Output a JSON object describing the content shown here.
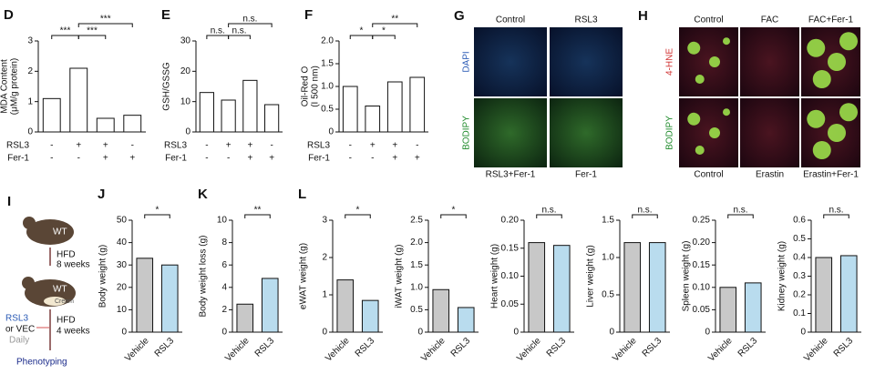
{
  "chart_data": [
    {
      "type": "bar",
      "panel": "D",
      "ylabel": [
        "MDA Content",
        "(μM/g protein)"
      ],
      "ylim": [
        0,
        3
      ],
      "yticks": [
        0,
        1,
        2,
        3
      ],
      "values": [
        1.1,
        2.1,
        0.45,
        0.55
      ],
      "color": "#ffffff",
      "conditions": [
        {
          "name": "RSL3",
          "signs": [
            "-",
            "+",
            "+",
            "-"
          ]
        },
        {
          "name": "Fer-1",
          "signs": [
            "-",
            "-",
            "+",
            "+"
          ]
        }
      ],
      "comparisons": [
        {
          "pair": [
            0,
            1
          ],
          "label": "***"
        },
        {
          "pair": [
            1,
            2
          ],
          "label": "***"
        },
        {
          "pair": [
            1,
            3
          ],
          "label": "***"
        }
      ]
    },
    {
      "type": "bar",
      "panel": "E",
      "ylabel": [
        "GSH/GSSG"
      ],
      "ylim": [
        0,
        30
      ],
      "yticks": [
        0,
        10,
        20,
        30
      ],
      "values": [
        13,
        10.5,
        17,
        9
      ],
      "color": "#ffffff",
      "conditions": [
        {
          "name": "RSL3",
          "signs": [
            "-",
            "+",
            "+",
            "-"
          ]
        },
        {
          "name": "Fer-1",
          "signs": [
            "-",
            "-",
            "+",
            "+"
          ]
        }
      ],
      "comparisons": [
        {
          "pair": [
            0,
            1
          ],
          "label": "n.s."
        },
        {
          "pair": [
            1,
            2
          ],
          "label": "n.s."
        },
        {
          "pair": [
            1,
            3
          ],
          "label": "n.s."
        }
      ]
    },
    {
      "type": "bar",
      "panel": "F",
      "ylabel": [
        "Oil-Red O",
        "(I 500 nm)"
      ],
      "ylim": [
        0,
        2
      ],
      "yticks": [
        0,
        0.5,
        {
          "value": 1,
          "label": "1.0"
        },
        1.5,
        {
          "value": 2,
          "label": "2.0"
        }
      ],
      "values": [
        1.0,
        0.57,
        1.1,
        1.2
      ],
      "color": "#ffffff",
      "conditions": [
        {
          "name": "RSL3",
          "signs": [
            "-",
            "+",
            "+",
            "-"
          ]
        },
        {
          "name": "Fer-1",
          "signs": [
            "-",
            "-",
            "+",
            "+"
          ]
        }
      ],
      "comparisons": [
        {
          "pair": [
            0,
            1
          ],
          "label": "*"
        },
        {
          "pair": [
            1,
            2
          ],
          "label": "*"
        },
        {
          "pair": [
            1,
            3
          ],
          "label": "**"
        }
      ]
    },
    {
      "type": "bar",
      "panel": "J",
      "ylabel": [
        "Body weight (g)"
      ],
      "ylim": [
        0,
        50
      ],
      "yticks": [
        0,
        10,
        20,
        30,
        40,
        50
      ],
      "categories": [
        "Vehicle",
        "RSL3"
      ],
      "values": [
        33,
        30
      ],
      "colors": [
        "#c8c8c8",
        "#b9dcee"
      ],
      "comparisons": [
        {
          "pair": [
            0,
            1
          ],
          "label": "*"
        }
      ]
    },
    {
      "type": "bar",
      "panel": "K",
      "ylabel": [
        "Body weight loss (g)"
      ],
      "ylim": [
        0,
        10
      ],
      "yticks": [
        0,
        2,
        4,
        6,
        8,
        10
      ],
      "categories": [
        "Vehicle",
        "RSL3"
      ],
      "values": [
        2.5,
        4.8
      ],
      "colors": [
        "#c8c8c8",
        "#b9dcee"
      ],
      "comparisons": [
        {
          "pair": [
            0,
            1
          ],
          "label": "**"
        }
      ]
    },
    {
      "type": "bar",
      "panel": "L",
      "ylabel": [
        "eWAT weight (g)"
      ],
      "ylim": [
        0,
        3
      ],
      "yticks": [
        0,
        1,
        2,
        3
      ],
      "categories": [
        "Vehicle",
        "RSL3"
      ],
      "values": [
        1.4,
        0.85
      ],
      "colors": [
        "#c8c8c8",
        "#b9dcee"
      ],
      "comparisons": [
        {
          "pair": [
            0,
            1
          ],
          "label": "*"
        }
      ]
    },
    {
      "type": "bar",
      "ylabel": [
        "iWAT weight (g)"
      ],
      "ylim": [
        0,
        2.5
      ],
      "yticks": [
        0,
        0.5,
        {
          "value": 1,
          "label": "1.0"
        },
        1.5,
        {
          "value": 2,
          "label": "2.0"
        },
        2.5
      ],
      "categories": [
        "Vehicle",
        "RSL3"
      ],
      "values": [
        0.95,
        0.55
      ],
      "colors": [
        "#c8c8c8",
        "#b9dcee"
      ],
      "comparisons": [
        {
          "pair": [
            0,
            1
          ],
          "label": "*"
        }
      ]
    },
    {
      "type": "bar",
      "ylabel": [
        "Heart weight (g)"
      ],
      "ylim": [
        0,
        0.2
      ],
      "yticks": [
        0,
        0.05,
        {
          "value": 0.1,
          "label": "0.10"
        },
        0.15,
        {
          "value": 0.2,
          "label": "0.20"
        }
      ],
      "categories": [
        "Vehicle",
        "RSL3"
      ],
      "values": [
        0.16,
        0.155
      ],
      "colors": [
        "#c8c8c8",
        "#b9dcee"
      ],
      "comparisons": [
        {
          "pair": [
            0,
            1
          ],
          "label": "n.s."
        }
      ]
    },
    {
      "type": "bar",
      "ylabel": [
        "Liver weight (g)"
      ],
      "ylim": [
        0,
        1.5
      ],
      "yticks": [
        0,
        0.5,
        {
          "value": 1,
          "label": "1.0"
        },
        1.5
      ],
      "categories": [
        "Vehicle",
        "RSL3"
      ],
      "values": [
        1.2,
        1.2
      ],
      "colors": [
        "#c8c8c8",
        "#b9dcee"
      ],
      "comparisons": [
        {
          "pair": [
            0,
            1
          ],
          "label": "n.s."
        }
      ]
    },
    {
      "type": "bar",
      "ylabel": [
        "Spleen weight (g)"
      ],
      "ylim": [
        0,
        0.25
      ],
      "yticks": [
        0,
        0.05,
        {
          "value": 0.1,
          "label": "0.10"
        },
        0.15,
        {
          "value": 0.2,
          "label": "0.20"
        },
        0.25
      ],
      "categories": [
        "Vehicle",
        "RSL3"
      ],
      "values": [
        0.1,
        0.11
      ],
      "colors": [
        "#c8c8c8",
        "#b9dcee"
      ],
      "comparisons": [
        {
          "pair": [
            0,
            1
          ],
          "label": "n.s."
        }
      ]
    },
    {
      "type": "bar",
      "ylabel": [
        "Kidney weight (g)"
      ],
      "ylim": [
        0,
        0.6
      ],
      "yticks": [
        0,
        0.1,
        0.2,
        0.3,
        0.4,
        0.5,
        0.6
      ],
      "categories": [
        "Vehicle",
        "RSL3"
      ],
      "values": [
        0.4,
        0.41
      ],
      "colors": [
        "#c8c8c8",
        "#b9dcee"
      ],
      "comparisons": [
        {
          "pair": [
            0,
            1
          ],
          "label": "n.s."
        }
      ]
    }
  ],
  "panel_g": {
    "panel": "G",
    "columns": [
      "Control",
      "RSL3"
    ],
    "rows": [
      "DAPI",
      "BODIPY"
    ],
    "bottom_labels": [
      "RSL3+Fer-1",
      "Fer-1"
    ]
  },
  "panel_h": {
    "panel": "H",
    "columns": [
      "Control",
      "FAC",
      "FAC+Fer-1"
    ],
    "rows": [
      "4-HNE",
      "BODIPY"
    ],
    "bottom_labels": [
      "Control",
      "Erastin",
      "Erastin+Fer-1"
    ]
  },
  "panel_i": {
    "panel": "I",
    "mouse": "WT",
    "step1": [
      "HFD",
      "8 weeks"
    ],
    "cream": "Cream",
    "treatment": [
      "RSL3",
      "or VEC",
      "Daily"
    ],
    "step2": [
      "HFD",
      "4 weeks"
    ],
    "outcome": "Phenotyping"
  }
}
